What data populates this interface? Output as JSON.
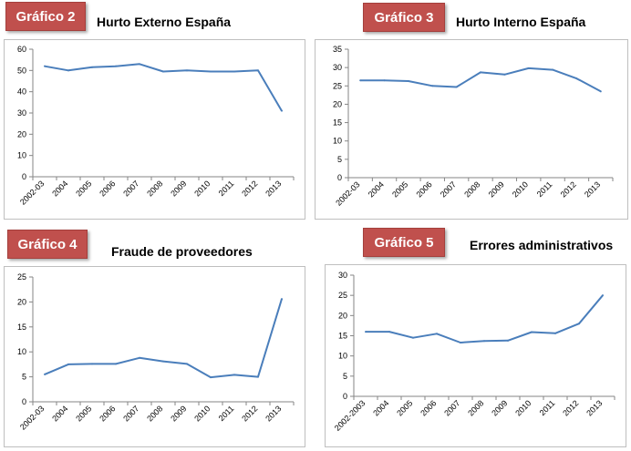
{
  "panels": [
    {
      "badge": "Gráfico 2",
      "chart_data": {
        "type": "line",
        "title": "Hurto Externo España",
        "categories": [
          "2002-03",
          "2004",
          "2005",
          "2006",
          "2007",
          "2008",
          "2009",
          "2010",
          "2011",
          "2012",
          "2013"
        ],
        "values": [
          52,
          50,
          51.5,
          52,
          53,
          49.5,
          50,
          49.5,
          49.5,
          50,
          31
        ],
        "ylim": [
          0,
          60
        ],
        "yticks": [
          0,
          10,
          20,
          30,
          40,
          50,
          60
        ],
        "grid": false,
        "line_color": "#4a7ebb"
      }
    },
    {
      "badge": "Gráfico 3",
      "chart_data": {
        "type": "line",
        "title": "Hurto Interno España",
        "categories": [
          "2002-03",
          "2004",
          "2005",
          "2006",
          "2007",
          "2008",
          "2009",
          "2010",
          "2011",
          "2012",
          "2013"
        ],
        "values": [
          26.5,
          26.5,
          26.3,
          25,
          24.7,
          28.7,
          28.1,
          29.8,
          29.4,
          27,
          23.5
        ],
        "ylim": [
          0,
          35
        ],
        "yticks": [
          0,
          5,
          10,
          15,
          20,
          25,
          30,
          35
        ],
        "grid": false,
        "line_color": "#4a7ebb"
      }
    },
    {
      "badge": "Gráfico 4",
      "chart_data": {
        "type": "line",
        "title": "Fraude de proveedores",
        "categories": [
          "2002-03",
          "2004",
          "2005",
          "2006",
          "2007",
          "2008",
          "2009",
          "2010",
          "2011",
          "2012",
          "2013"
        ],
        "values": [
          5.5,
          7.5,
          7.6,
          7.6,
          8.8,
          8.1,
          7.6,
          4.9,
          5.4,
          5,
          20.6
        ],
        "ylim": [
          0,
          25
        ],
        "yticks": [
          0,
          5,
          10,
          15,
          20,
          25
        ],
        "grid": false,
        "line_color": "#4a7ebb"
      }
    },
    {
      "badge": "Gráfico 5",
      "chart_data": {
        "type": "line",
        "title": "Errores administrativos",
        "categories": [
          "2002-2003",
          "2004",
          "2005",
          "2006",
          "2007",
          "2008",
          "2009",
          "2010",
          "2011",
          "2012",
          "2013"
        ],
        "values": [
          16,
          16,
          14.5,
          15.5,
          13.3,
          13.7,
          13.8,
          15.9,
          15.6,
          18,
          25
        ],
        "ylim": [
          0,
          30
        ],
        "yticks": [
          0,
          5,
          10,
          15,
          20,
          25,
          30
        ],
        "grid": false,
        "line_color": "#4a7ebb"
      }
    }
  ]
}
